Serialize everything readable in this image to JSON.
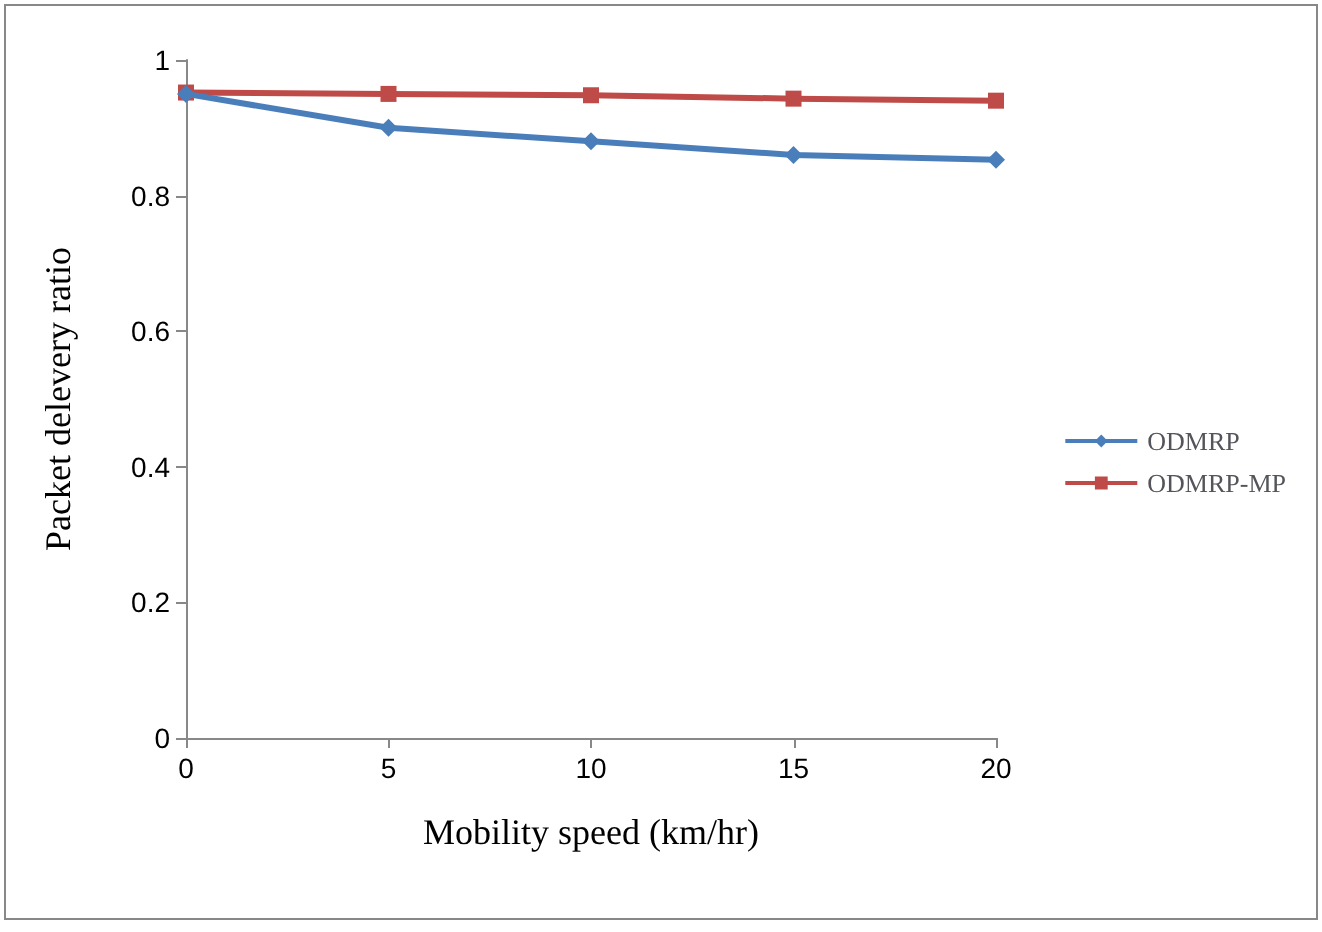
{
  "chart_data": {
    "type": "line",
    "xlabel": "Mobility speed (km/hr)",
    "ylabel": "Packet delevery ratio",
    "x": [
      0,
      5,
      10,
      15,
      20
    ],
    "xlim": [
      0,
      20
    ],
    "xticks": [
      0,
      5,
      10,
      15,
      20
    ],
    "ylim": [
      0,
      1
    ],
    "yticks": [
      0,
      0.2,
      0.4,
      0.6,
      0.8,
      1
    ],
    "grid": false,
    "legend": "right",
    "series": [
      {
        "name": "ODMRP",
        "color": "#4a7ebb",
        "marker": "diamond",
        "values": [
          0.95,
          0.9,
          0.88,
          0.86,
          0.853
        ]
      },
      {
        "name": "ODMRP-MP",
        "color": "#be4b48",
        "marker": "square",
        "values": [
          0.952,
          0.95,
          0.948,
          0.943,
          0.94
        ]
      }
    ]
  }
}
